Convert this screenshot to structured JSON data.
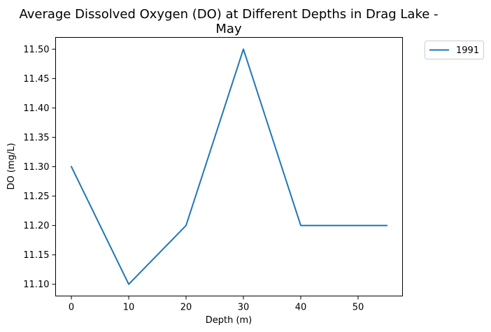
{
  "chart_data": {
    "type": "line",
    "title_lines": [
      "Average Dissolved Oxygen (DO) at Different Depths in Drag Lake -",
      "May"
    ],
    "xlabel": "Depth (m)",
    "ylabel": "DO (mg/L)",
    "xlim": [
      -2.75,
      57.75
    ],
    "ylim": [
      11.08,
      11.52
    ],
    "xticks": [
      0,
      10,
      20,
      30,
      40,
      50
    ],
    "yticks": [
      11.1,
      11.15,
      11.2,
      11.25,
      11.3,
      11.35,
      11.4,
      11.45,
      11.5
    ],
    "ytick_decimals": 2,
    "grid": false,
    "legend_position": "outside-top-right",
    "series": [
      {
        "name": "1991",
        "color": "#1f77b4",
        "x": [
          0,
          10,
          20,
          30,
          40,
          55
        ],
        "y": [
          11.3,
          11.1,
          11.2,
          11.5,
          11.2,
          11.2
        ]
      }
    ]
  }
}
